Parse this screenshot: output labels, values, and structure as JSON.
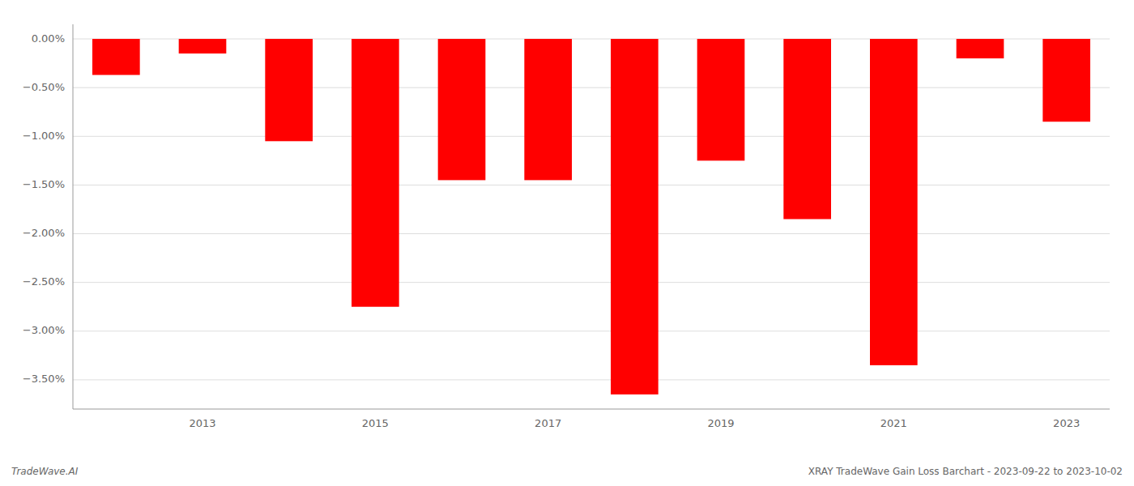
{
  "chart_data": {
    "type": "bar",
    "title": "XRAY TradeWave Gain Loss Barchart - 2023-09-22 to 2023-10-02",
    "annotations": [
      "TradeWave.AI"
    ],
    "categories": [
      null,
      "2013",
      null,
      "2015",
      null,
      "2017",
      null,
      "2019",
      null,
      "2021",
      null,
      "2023"
    ],
    "values": [
      -0.37,
      -0.15,
      -1.05,
      -2.75,
      -1.45,
      -1.45,
      -3.65,
      -1.25,
      -1.85,
      -3.35,
      -0.2,
      -0.85
    ],
    "color": "#ff0000",
    "ylim": [
      -3.8,
      0.15
    ],
    "yticks": [
      {
        "value": 0.0,
        "label": "0.00%"
      },
      {
        "value": -0.5,
        "label": "−0.50%"
      },
      {
        "value": -1.0,
        "label": "−1.00%"
      },
      {
        "value": -1.5,
        "label": "−1.50%"
      },
      {
        "value": -2.0,
        "label": "−2.00%"
      },
      {
        "value": -2.5,
        "label": "−2.50%"
      },
      {
        "value": -3.0,
        "label": "−3.00%"
      },
      {
        "value": -3.5,
        "label": "−3.50%"
      }
    ],
    "grid": true
  }
}
